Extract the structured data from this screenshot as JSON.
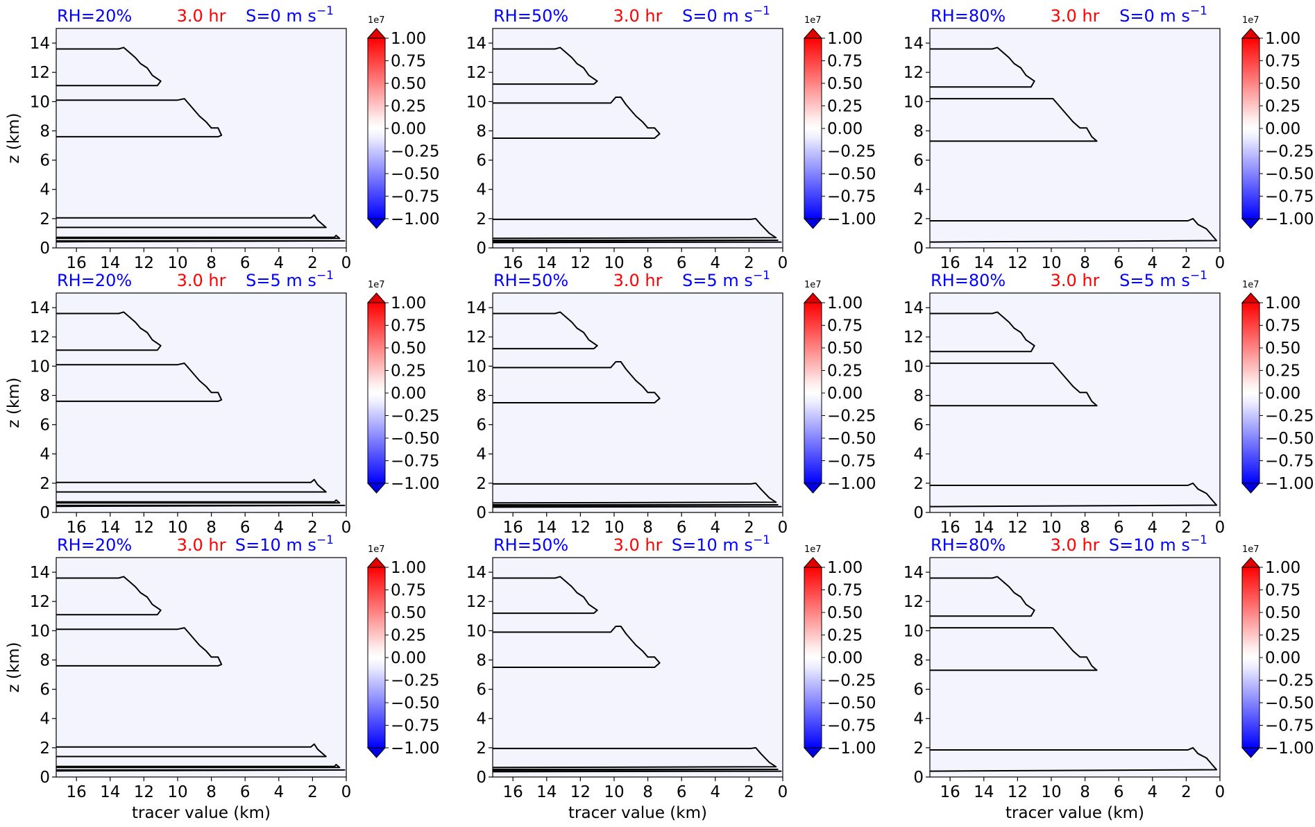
{
  "chart_data": {
    "type": "contour",
    "layout": {
      "rows": 3,
      "cols": 3
    },
    "colors": {
      "rh_title": "#0000ff",
      "time_title": "#ff0000",
      "shear_title": "#0000ff",
      "plot_background": "#f4f4fe",
      "contour_line": "#000000"
    },
    "time_label": "3.0 hr",
    "colorbar": {
      "colormap": "bwr",
      "ticks": [
        "1.00",
        "0.75",
        "0.50",
        "0.25",
        "0.00",
        "−0.25",
        "−0.50",
        "−0.75",
        "−1.00"
      ],
      "range": [
        -1.0,
        1.0
      ],
      "exponent": "1e7",
      "extend": "both"
    },
    "x_ticks": [
      "16",
      "14",
      "12",
      "10",
      "8",
      "6",
      "4",
      "2",
      "0"
    ],
    "y_ticks": [
      "0",
      "2",
      "4",
      "6",
      "8",
      "10",
      "12",
      "14"
    ],
    "xlim": [
      17.2,
      0
    ],
    "ylim": [
      0,
      15
    ],
    "ylabel": "z (km)",
    "xlabel": "tracer value (km)",
    "panels": [
      {
        "rh": "RH=20%",
        "shear": "S=0 m s",
        "row": 0,
        "col": 0,
        "profile": "rh20"
      },
      {
        "rh": "RH=50%",
        "shear": "S=0 m s",
        "row": 0,
        "col": 1,
        "profile": "rh50"
      },
      {
        "rh": "RH=80%",
        "shear": "S=0 m s",
        "row": 0,
        "col": 2,
        "profile": "rh80"
      },
      {
        "rh": "RH=20%",
        "shear": "S=5 m s",
        "row": 1,
        "col": 0,
        "profile": "rh20"
      },
      {
        "rh": "RH=50%",
        "shear": "S=5 m s",
        "row": 1,
        "col": 1,
        "profile": "rh50"
      },
      {
        "rh": "RH=80%",
        "shear": "S=5 m s",
        "row": 1,
        "col": 2,
        "profile": "rh80"
      },
      {
        "rh": "RH=20%",
        "shear": "S=10 m s",
        "row": 2,
        "col": 0,
        "profile": "rh20"
      },
      {
        "rh": "RH=50%",
        "shear": "S=10 m s",
        "row": 2,
        "col": 1,
        "profile": "rh50"
      },
      {
        "rh": "RH=80%",
        "shear": "S=10 m s",
        "row": 2,
        "col": 2,
        "profile": "rh80"
      }
    ],
    "profiles": {
      "rh20": [
        [
          [
            17.2,
            13.6
          ],
          [
            13.5,
            13.6
          ],
          [
            13.2,
            13.7
          ],
          [
            12.8,
            13.3
          ],
          [
            12.5,
            13.0
          ],
          [
            12.2,
            12.6
          ],
          [
            11.8,
            12.3
          ],
          [
            11.5,
            11.8
          ],
          [
            11.0,
            11.4
          ],
          [
            11.2,
            11.1
          ],
          [
            17.2,
            11.1
          ]
        ],
        [
          [
            17.2,
            10.1
          ],
          [
            10.0,
            10.1
          ],
          [
            9.6,
            10.2
          ],
          [
            9.3,
            9.8
          ],
          [
            9.0,
            9.4
          ],
          [
            8.7,
            9.0
          ],
          [
            8.3,
            8.6
          ],
          [
            8.0,
            8.2
          ],
          [
            7.6,
            8.2
          ],
          [
            7.4,
            7.7
          ],
          [
            7.6,
            7.6
          ],
          [
            17.2,
            7.6
          ]
        ],
        [
          [
            17.2,
            2.05
          ],
          [
            2.1,
            2.05
          ],
          [
            1.9,
            2.25
          ],
          [
            1.7,
            1.9
          ],
          [
            1.2,
            1.4
          ],
          [
            17.2,
            1.4
          ]
        ],
        [
          [
            17.2,
            0.72
          ],
          [
            0.7,
            0.72
          ],
          [
            0.6,
            0.85
          ],
          [
            0.4,
            0.65
          ],
          [
            17.2,
            0.65
          ]
        ],
        [
          [
            17.2,
            0.48
          ],
          [
            0.1,
            0.48
          ],
          [
            17.2,
            0.42
          ]
        ]
      ],
      "rh50": [
        [
          [
            17.2,
            13.6
          ],
          [
            13.5,
            13.6
          ],
          [
            13.2,
            13.7
          ],
          [
            12.8,
            13.3
          ],
          [
            12.5,
            13.0
          ],
          [
            12.2,
            12.6
          ],
          [
            11.8,
            12.3
          ],
          [
            11.5,
            11.8
          ],
          [
            11.0,
            11.4
          ],
          [
            11.2,
            11.2
          ],
          [
            17.2,
            11.2
          ]
        ],
        [
          [
            17.2,
            9.9
          ],
          [
            10.2,
            9.9
          ],
          [
            9.9,
            10.3
          ],
          [
            9.6,
            10.3
          ],
          [
            9.3,
            9.8
          ],
          [
            9.0,
            9.4
          ],
          [
            8.7,
            9.0
          ],
          [
            8.3,
            8.6
          ],
          [
            8.0,
            8.2
          ],
          [
            7.6,
            8.2
          ],
          [
            7.3,
            7.8
          ],
          [
            7.6,
            7.5
          ],
          [
            17.2,
            7.5
          ]
        ],
        [
          [
            17.2,
            1.95
          ],
          [
            1.9,
            1.95
          ],
          [
            1.6,
            2.0
          ],
          [
            1.3,
            1.6
          ],
          [
            0.8,
            1.0
          ],
          [
            0.4,
            0.7
          ],
          [
            17.2,
            0.65
          ]
        ],
        [
          [
            17.2,
            0.52
          ],
          [
            0.3,
            0.52
          ],
          [
            17.2,
            0.48
          ]
        ],
        [
          [
            17.2,
            0.4
          ],
          [
            0.1,
            0.4
          ],
          [
            17.2,
            0.36
          ]
        ]
      ],
      "rh80": [
        [
          [
            17.2,
            13.6
          ],
          [
            13.5,
            13.6
          ],
          [
            13.2,
            13.7
          ],
          [
            12.8,
            13.3
          ],
          [
            12.5,
            13.0
          ],
          [
            12.2,
            12.6
          ],
          [
            11.8,
            12.3
          ],
          [
            11.5,
            11.8
          ],
          [
            11.0,
            11.4
          ],
          [
            11.2,
            11.0
          ],
          [
            17.2,
            11.0
          ]
        ],
        [
          [
            17.2,
            10.2
          ],
          [
            10.2,
            10.2
          ],
          [
            9.9,
            10.2
          ],
          [
            9.6,
            9.8
          ],
          [
            9.3,
            9.4
          ],
          [
            9.0,
            9.0
          ],
          [
            8.7,
            8.6
          ],
          [
            8.3,
            8.2
          ],
          [
            7.9,
            8.2
          ],
          [
            7.6,
            7.6
          ],
          [
            7.3,
            7.3
          ],
          [
            17.2,
            7.3
          ]
        ],
        [
          [
            17.2,
            1.85
          ],
          [
            1.9,
            1.85
          ],
          [
            1.6,
            2.0
          ],
          [
            1.3,
            1.6
          ],
          [
            0.8,
            1.3
          ],
          [
            0.2,
            0.5
          ],
          [
            17.2,
            0.4
          ]
        ]
      ]
    }
  }
}
